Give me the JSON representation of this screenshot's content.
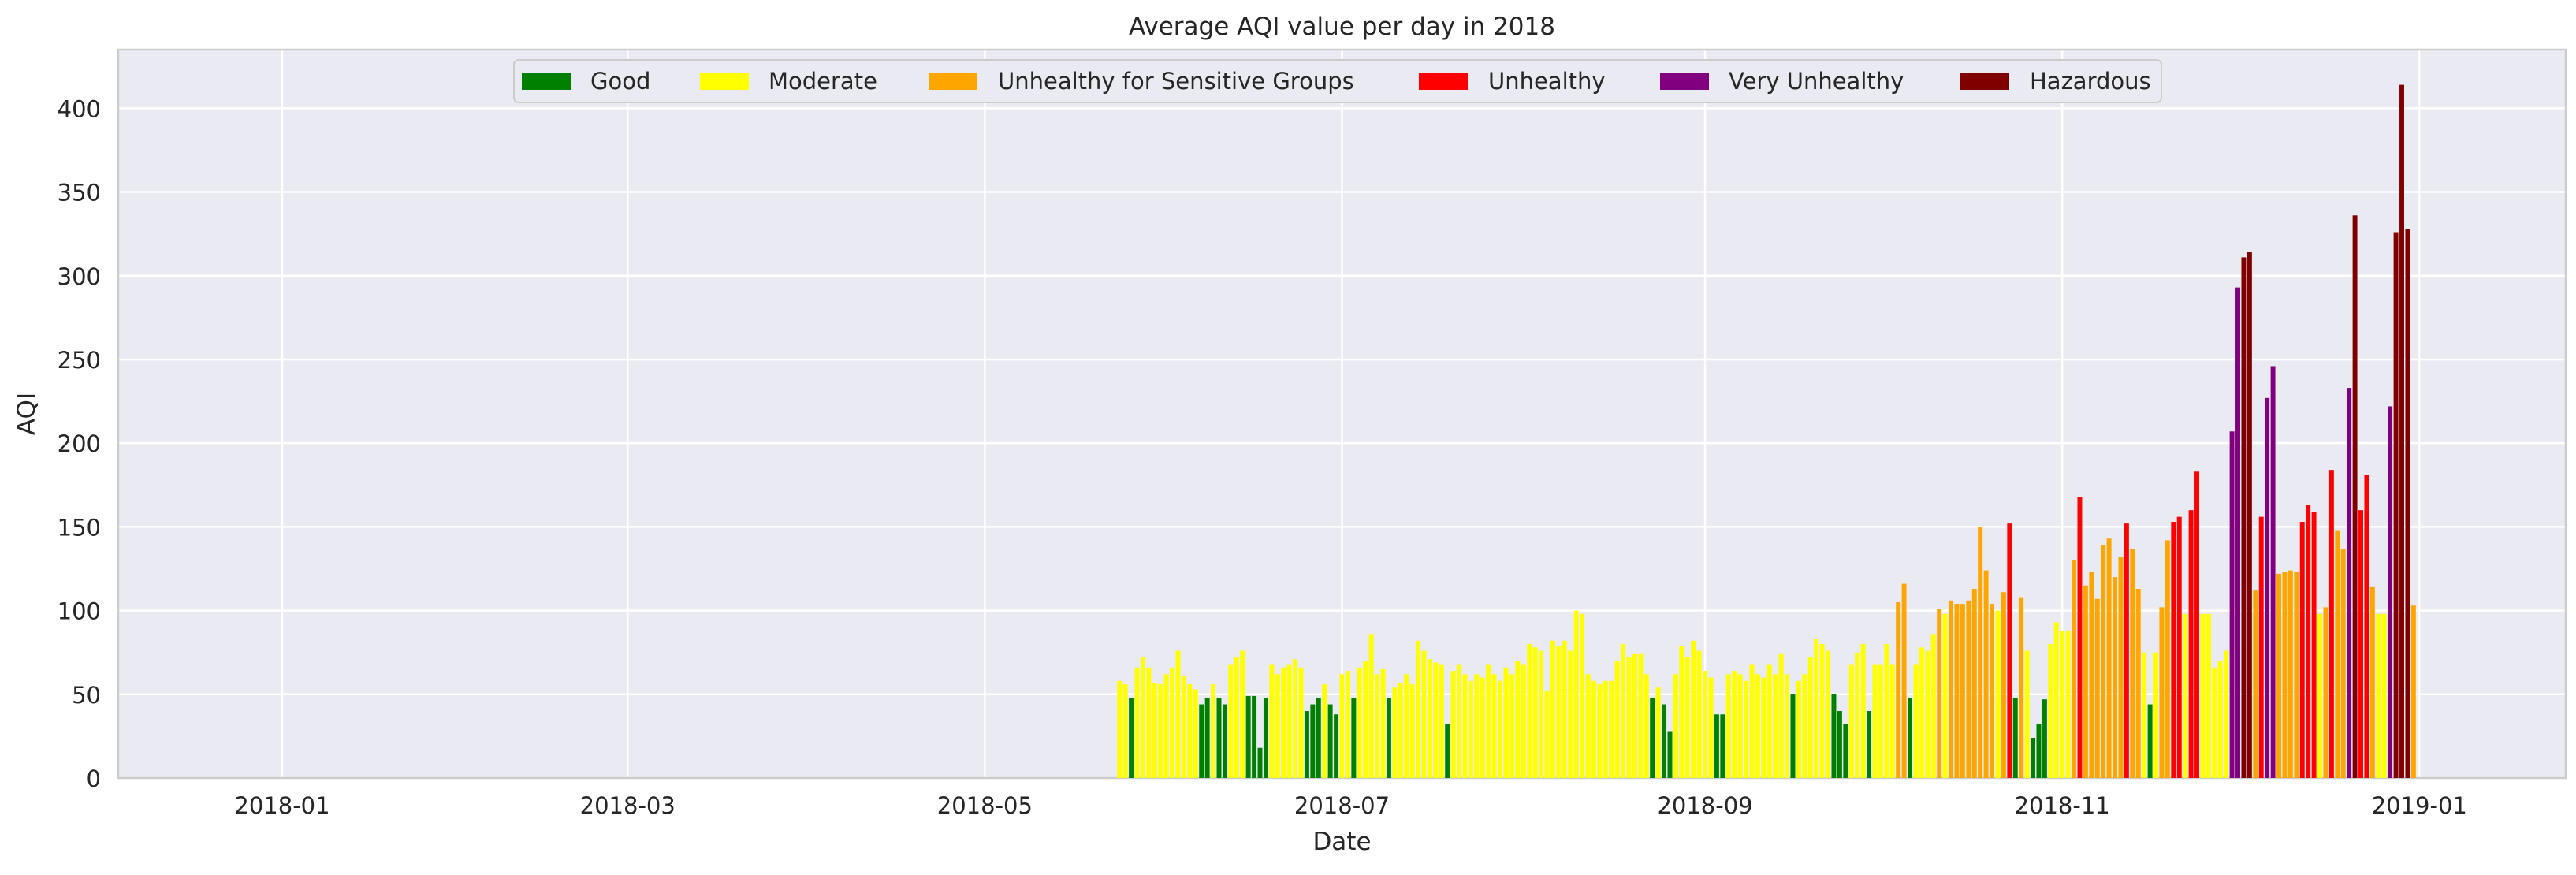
{
  "chart_data": {
    "type": "bar",
    "title": "Average AQI value per day in 2018",
    "xlabel": "Date",
    "ylabel": "AQI",
    "ylim": [
      0,
      435
    ],
    "xlim": [
      "2017-12-04",
      "2019-01-26"
    ],
    "yticks": [
      0,
      50,
      100,
      150,
      200,
      250,
      300,
      350,
      400
    ],
    "xticks": [
      "2018-01",
      "2018-03",
      "2018-05",
      "2018-07",
      "2018-09",
      "2018-11",
      "2019-01"
    ],
    "grid": true,
    "legend_position": "top",
    "start_date": "2018-05-24",
    "legend": [
      {
        "label": "Good",
        "color": "#008000",
        "max": 50
      },
      {
        "label": "Moderate",
        "color": "#ffff00",
        "max": 100
      },
      {
        "label": "Unhealthy for Sensitive Groups",
        "color": "#ffa500",
        "max": 150
      },
      {
        "label": "Unhealthy",
        "color": "#ff0000",
        "max": 200
      },
      {
        "label": "Very Unhealthy",
        "color": "#800080",
        "max": 300
      },
      {
        "label": "Hazardous",
        "color": "#800000",
        "max": 500
      }
    ],
    "values": [
      58,
      56,
      48,
      66,
      72,
      66,
      57,
      56,
      62,
      66,
      76,
      61,
      56,
      53,
      44,
      48,
      56,
      48,
      44,
      68,
      72,
      76,
      49,
      49,
      18,
      48,
      68,
      62,
      66,
      68,
      71,
      66,
      40,
      44,
      48,
      56,
      44,
      38,
      62,
      64,
      48,
      66,
      70,
      86,
      62,
      65,
      48,
      54,
      57,
      62,
      56,
      82,
      76,
      71,
      69,
      68,
      32,
      64,
      68,
      62,
      58,
      62,
      60,
      68,
      62,
      58,
      66,
      62,
      70,
      68,
      80,
      78,
      76,
      52,
      82,
      79,
      82,
      76,
      100,
      98,
      62,
      58,
      56,
      58,
      58,
      70,
      80,
      72,
      74,
      74,
      62,
      48,
      54,
      44,
      28,
      62,
      79,
      72,
      82,
      76,
      64,
      60,
      38,
      38,
      62,
      64,
      62,
      58,
      68,
      62,
      60,
      68,
      62,
      74,
      62,
      50,
      58,
      62,
      72,
      83,
      80,
      76,
      50,
      40,
      32,
      68,
      75,
      80,
      40,
      68,
      68,
      80,
      68,
      105,
      116,
      48,
      68,
      78,
      76,
      86,
      101,
      98,
      106,
      104,
      104,
      106,
      113,
      150,
      124,
      104,
      100,
      111,
      152,
      48,
      108,
      76,
      24,
      32,
      47,
      80,
      93,
      88,
      88,
      130,
      168,
      115,
      123,
      107,
      139,
      143,
      120,
      132,
      152,
      137,
      113,
      75,
      44,
      75,
      102,
      142,
      153,
      156,
      98,
      160,
      183,
      98,
      98,
      66,
      70,
      76,
      207,
      293,
      311,
      314,
      112,
      156,
      227,
      246,
      122,
      123,
      124,
      123,
      153,
      163,
      159,
      98,
      102,
      184,
      148,
      137,
      233,
      336,
      160,
      181,
      114,
      98,
      98,
      222,
      326,
      414,
      328,
      103
    ]
  }
}
